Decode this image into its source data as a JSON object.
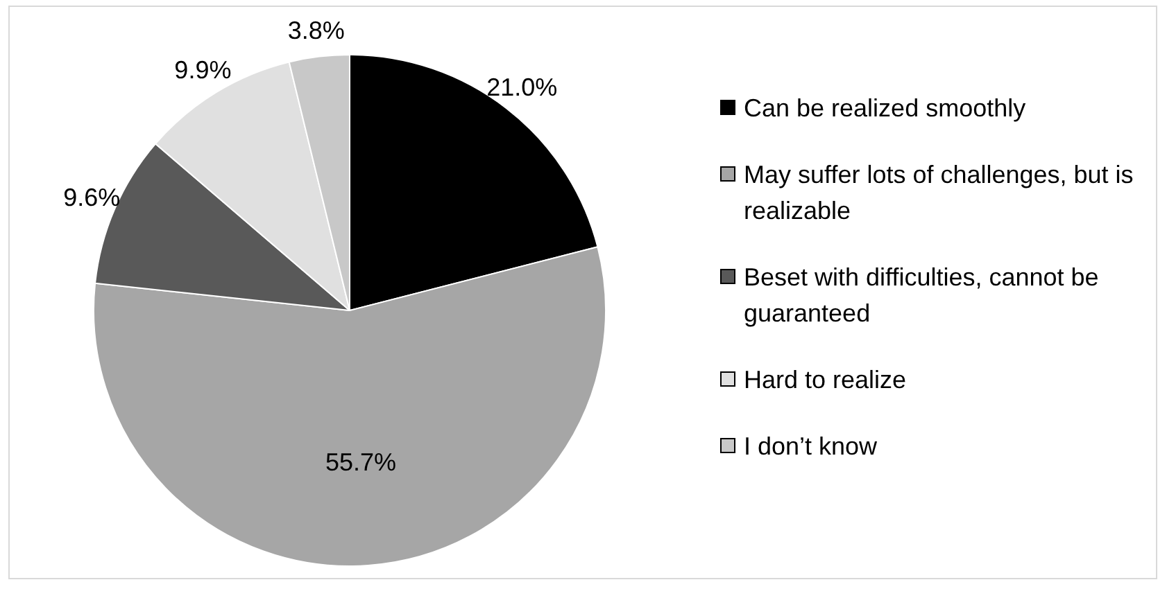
{
  "chart_data": {
    "type": "pie",
    "categories": [
      "Can be realized smoothly",
      "May suffer lots of challenges, but is realizable",
      "Beset with difficulties, cannot be guaranteed",
      "Hard to realize",
      "I don’t know"
    ],
    "values": [
      21.0,
      55.7,
      9.6,
      9.9,
      3.8
    ],
    "value_labels": [
      "21.0%",
      "55.7%",
      "9.6%",
      "9.9%",
      "3.8%"
    ],
    "colors": [
      "#000000",
      "#a6a6a6",
      "#595959",
      "#e0e0e0",
      "#c8c8c8"
    ],
    "legend": "right"
  }
}
